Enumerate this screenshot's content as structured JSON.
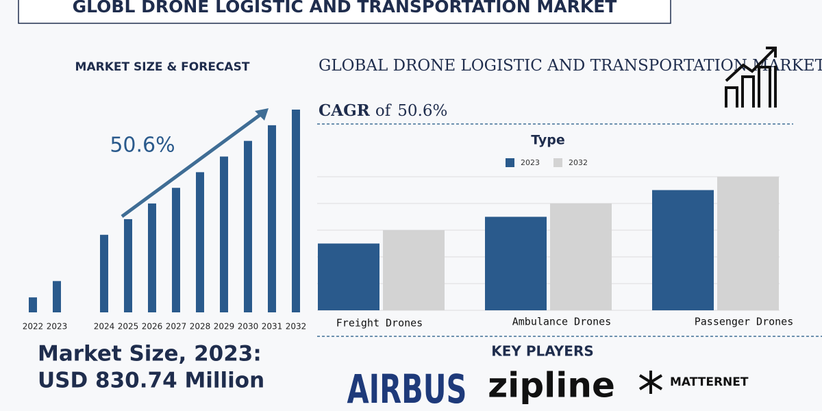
{
  "header": {
    "title": "GLOBL DRONE LOGISTIC AND TRANSPORTATION MARKET"
  },
  "headline": {
    "text": "GLOBAL DRONE LOGISTIC AND TRANSPORTATION MARKET is growing at",
    "cagr_label": "CAGR",
    "of": "of",
    "cagr": "50.6%"
  },
  "chart_data": [
    {
      "type": "bar",
      "title": "MARKET SIZE & FORECAST",
      "annotation": "50.6%",
      "categories": [
        "2022",
        "2023",
        "2024",
        "2025",
        "2026",
        "2027",
        "2028",
        "2029",
        "2030",
        "2031",
        "2032"
      ],
      "values": [
        22,
        46,
        114,
        137,
        160,
        183,
        206,
        229,
        252,
        275,
        298
      ],
      "color": "#2a5a8c",
      "ylim": [
        0,
        300
      ]
    },
    {
      "type": "grouped-bar",
      "title": "Type",
      "categories": [
        "Freight Drones",
        "Ambulance Drones",
        "Passenger Drones"
      ],
      "series": [
        {
          "name": "2023",
          "color": "#2a5a8c",
          "values": [
            2.5,
            3.5,
            4.5
          ]
        },
        {
          "name": "2032",
          "color": "#d3d3d3",
          "values": [
            3,
            4,
            5
          ]
        }
      ],
      "ylim": [
        0,
        5
      ],
      "yticks": [
        0,
        1,
        2,
        3,
        4,
        5
      ],
      "grid": true
    }
  ],
  "market_size": {
    "line1": "Market Size, 2023:",
    "line2": "USD 830.74 Million"
  },
  "key_players": {
    "title": "KEY PLAYERS",
    "players": [
      "AIRBUS",
      "zipline",
      "MATTERNET"
    ]
  }
}
